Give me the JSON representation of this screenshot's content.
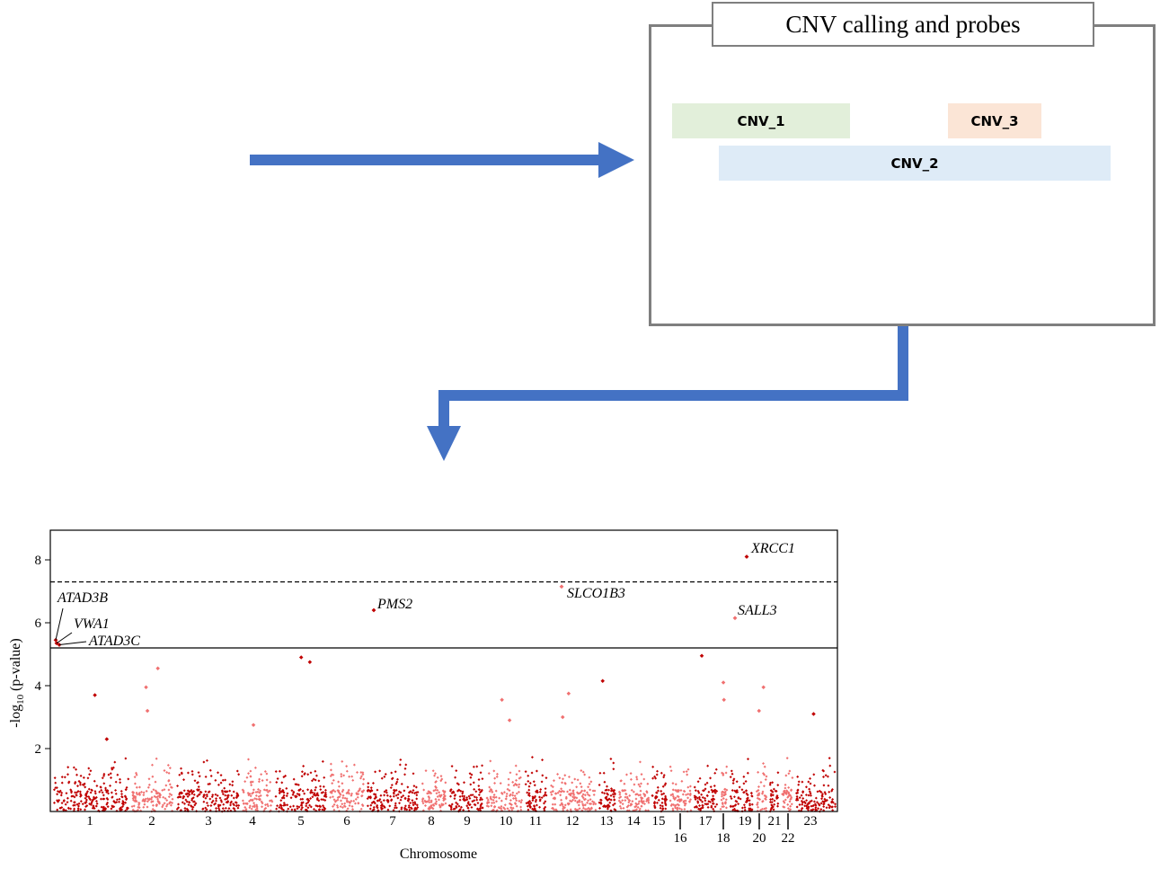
{
  "diagram": {
    "box_title": "CNV calling and probes",
    "cnv_labels": [
      "CNV_1",
      "CNV_2",
      "CNV_3"
    ],
    "arrow_color": "#4472c4",
    "cnv_colors": {
      "CNV_1": "#e2efda",
      "CNV_2": "#deebf7",
      "CNV_3": "#fbe5d6"
    }
  },
  "chart_data": {
    "type": "scatter",
    "subtype": "manhattan",
    "xlabel": "Chromosome",
    "ylabel": "-log10 (p-value)",
    "ylim": [
      0,
      9
    ],
    "yticks": [
      2,
      4,
      6,
      8
    ],
    "chromosomes": [
      "1",
      "2",
      "3",
      "4",
      "5",
      "6",
      "7",
      "8",
      "9",
      "10",
      "11",
      "12",
      "13",
      "14",
      "15",
      "16",
      "17",
      "18",
      "19",
      "20",
      "21",
      "22",
      "23"
    ],
    "colors": {
      "dark": "#c00000",
      "light": "#f07070"
    },
    "genome_wide_threshold": 7.3,
    "suggestive_threshold": 5.2,
    "highlighted": [
      {
        "gene": "ATAD3B",
        "chrom": "1",
        "y": 5.45
      },
      {
        "gene": "VWA1",
        "chrom": "1",
        "y": 5.35
      },
      {
        "gene": "ATAD3C",
        "chrom": "1",
        "y": 5.3
      },
      {
        "gene": "PMS2",
        "chrom": "7",
        "y": 6.4
      },
      {
        "gene": "SLCO1B3",
        "chrom": "12",
        "y": 7.15
      },
      {
        "gene": "XRCC1",
        "chrom": "19",
        "y": 8.1
      },
      {
        "gene": "SALL3",
        "chrom": "18",
        "y": 6.15
      }
    ],
    "notable_points": [
      {
        "chrom": "1",
        "y": 3.7
      },
      {
        "chrom": "1",
        "y": 2.3
      },
      {
        "chrom": "2",
        "y": 4.55
      },
      {
        "chrom": "2",
        "y": 3.95
      },
      {
        "chrom": "2",
        "y": 3.2
      },
      {
        "chrom": "4",
        "y": 2.75
      },
      {
        "chrom": "5",
        "y": 4.9
      },
      {
        "chrom": "5",
        "y": 4.75
      },
      {
        "chrom": "10",
        "y": 3.55
      },
      {
        "chrom": "10",
        "y": 2.9
      },
      {
        "chrom": "12",
        "y": 3.75
      },
      {
        "chrom": "12",
        "y": 3.0
      },
      {
        "chrom": "13",
        "y": 4.15
      },
      {
        "chrom": "17",
        "y": 4.95
      },
      {
        "chrom": "18",
        "y": 3.55
      },
      {
        "chrom": "18",
        "y": 4.1
      },
      {
        "chrom": "20",
        "y": 3.95
      },
      {
        "chrom": "20",
        "y": 3.2
      },
      {
        "chrom": "23",
        "y": 3.1
      }
    ]
  }
}
